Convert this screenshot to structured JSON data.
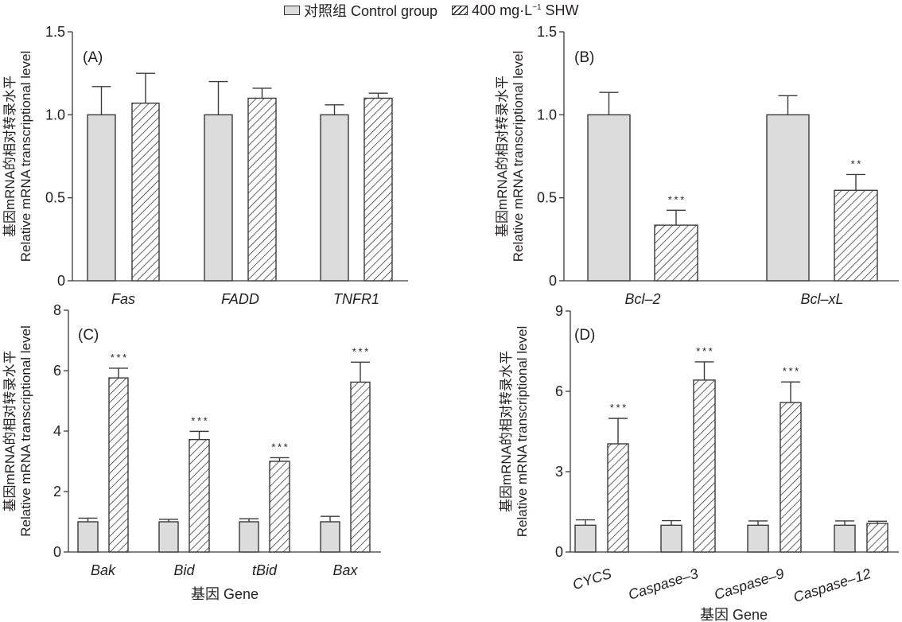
{
  "legend": {
    "control_label": "对照组 Control group",
    "treatment_label_prefix": "400 mg·L",
    "treatment_label_sup": "−1",
    "treatment_label_suffix": " SHW"
  },
  "colors": {
    "control_fill": "#dcdcdc",
    "bar_stroke": "#3a3a3a",
    "hatch": "#222222",
    "text": "#231f20"
  },
  "chart_data": [
    {
      "type": "bar",
      "panel": "(A)",
      "title": "",
      "ylabel_cn": "基因mRNA的相对转录水平",
      "ylabel": "Relative mRNA transcriptional level",
      "xlabel": "",
      "ylim": [
        0,
        1.5
      ],
      "yticks": [
        0,
        0.5,
        1.0,
        1.5
      ],
      "ytick_labels": [
        "0",
        "0.5",
        "1.0",
        "1.5"
      ],
      "categories": [
        "Fas",
        "FADD",
        "TNFR1"
      ],
      "series": [
        {
          "name": "对照组 Control group",
          "values": [
            1.0,
            1.0,
            1.0
          ],
          "errors": [
            0.17,
            0.2,
            0.06
          ],
          "significance": [
            "",
            "",
            ""
          ]
        },
        {
          "name": "400 mg·L−1 SHW",
          "values": [
            1.07,
            1.1,
            1.1
          ],
          "errors": [
            0.18,
            0.06,
            0.03
          ],
          "significance": [
            "",
            "",
            ""
          ]
        }
      ]
    },
    {
      "type": "bar",
      "panel": "(B)",
      "title": "",
      "ylabel_cn": "基因mRNA的相对转录水平",
      "ylabel": "Relative mRNA transcriptional level",
      "xlabel": "",
      "ylim": [
        0,
        1.5
      ],
      "yticks": [
        0,
        0.5,
        1.0,
        1.5
      ],
      "ytick_labels": [
        "0",
        "0.5",
        "1.0",
        "1.5"
      ],
      "categories": [
        "Bcl-2",
        "Bcl-xL"
      ],
      "series": [
        {
          "name": "对照组 Control group",
          "values": [
            1.0,
            1.0
          ],
          "errors": [
            0.135,
            0.115
          ],
          "significance": [
            "",
            ""
          ]
        },
        {
          "name": "400 mg·L−1 SHW",
          "values": [
            0.335,
            0.545
          ],
          "errors": [
            0.09,
            0.095
          ],
          "significance": [
            "***",
            "**"
          ]
        }
      ]
    },
    {
      "type": "bar",
      "panel": "(C)",
      "title": "",
      "ylabel_cn": "基因mRNA的相对转录水平",
      "ylabel": "Relative mRNA transcriptional level",
      "xlabel": "基因 Gene",
      "ylim": [
        0,
        8
      ],
      "yticks": [
        0,
        2,
        4,
        6,
        8
      ],
      "ytick_labels": [
        "0",
        "2",
        "4",
        "6",
        "8"
      ],
      "categories": [
        "Bak",
        "Bid",
        "tBid",
        "Bax"
      ],
      "series": [
        {
          "name": "对照组 Control group",
          "values": [
            1.0,
            1.0,
            1.0,
            1.0
          ],
          "errors": [
            0.12,
            0.08,
            0.1,
            0.18
          ],
          "significance": [
            "",
            "",
            "",
            ""
          ]
        },
        {
          "name": "400 mg·L−1 SHW",
          "values": [
            5.76,
            3.72,
            3.0,
            5.62
          ],
          "errors": [
            0.32,
            0.27,
            0.12,
            0.66
          ],
          "significance": [
            "***",
            "***",
            "***",
            "***"
          ]
        }
      ]
    },
    {
      "type": "bar",
      "panel": "(D)",
      "title": "",
      "ylabel_cn": "基因mRNA的相对转录水平",
      "ylabel": "Relative mRNA transcriptional level",
      "xlabel": "基因 Gene",
      "ylim": [
        0,
        9
      ],
      "yticks": [
        0,
        3,
        6,
        9
      ],
      "ytick_labels": [
        "0",
        "3",
        "6",
        "9"
      ],
      "categories": [
        "CYCS",
        "Caspase-3",
        "Caspase-9",
        "Caspase-12"
      ],
      "series": [
        {
          "name": "对照组 Control group",
          "values": [
            1.0,
            1.0,
            1.0,
            1.0
          ],
          "errors": [
            0.2,
            0.17,
            0.16,
            0.16
          ],
          "significance": [
            "",
            "",
            "",
            ""
          ]
        },
        {
          "name": "400 mg·L−1 SHW",
          "values": [
            4.04,
            6.42,
            5.58,
            1.07
          ],
          "errors": [
            0.95,
            0.68,
            0.77,
            0.08
          ],
          "significance": [
            "***",
            "***",
            "***",
            ""
          ]
        }
      ]
    }
  ]
}
